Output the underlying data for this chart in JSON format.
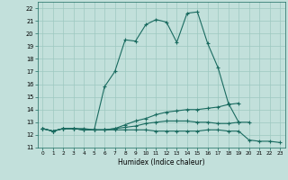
{
  "xlabel": "Humidex (Indice chaleur)",
  "xlim": [
    -0.5,
    23.5
  ],
  "ylim": [
    11,
    22.5
  ],
  "yticks": [
    11,
    12,
    13,
    14,
    15,
    16,
    17,
    18,
    19,
    20,
    21,
    22
  ],
  "xticks": [
    0,
    1,
    2,
    3,
    4,
    5,
    6,
    7,
    8,
    9,
    10,
    11,
    12,
    13,
    14,
    15,
    16,
    17,
    18,
    19,
    20,
    21,
    22,
    23
  ],
  "bg_color": "#c2e0db",
  "grid_color": "#9dc8c0",
  "line_color": "#1a6b60",
  "curves": [
    {
      "x": [
        0,
        1,
        2,
        3,
        4,
        5,
        6,
        7,
        8,
        9,
        10,
        11,
        12,
        13,
        14,
        15,
        16,
        17,
        18,
        19
      ],
      "y": [
        12.5,
        12.3,
        12.5,
        12.5,
        12.5,
        12.4,
        15.8,
        17.0,
        19.5,
        19.4,
        20.7,
        21.1,
        20.9,
        19.3,
        21.6,
        21.7,
        19.2,
        17.3,
        14.5,
        13.0
      ]
    },
    {
      "x": [
        0,
        1,
        2,
        3,
        4,
        5,
        6,
        7,
        8,
        9,
        10,
        11,
        12,
        13,
        14,
        15,
        16,
        17,
        18,
        19
      ],
      "y": [
        12.5,
        12.3,
        12.5,
        12.5,
        12.4,
        12.4,
        12.4,
        12.5,
        12.8,
        13.1,
        13.3,
        13.6,
        13.8,
        13.9,
        14.0,
        14.0,
        14.1,
        14.2,
        14.4,
        14.5
      ]
    },
    {
      "x": [
        0,
        1,
        2,
        3,
        4,
        5,
        6,
        7,
        8,
        9,
        10,
        11,
        12,
        13,
        14,
        15,
        16,
        17,
        18,
        19,
        20,
        21,
        22,
        23
      ],
      "y": [
        12.5,
        12.3,
        12.5,
        12.5,
        12.4,
        12.4,
        12.4,
        12.4,
        12.4,
        12.4,
        12.4,
        12.3,
        12.3,
        12.3,
        12.3,
        12.3,
        12.4,
        12.4,
        12.3,
        12.3,
        11.6,
        11.5,
        11.5,
        11.4
      ]
    },
    {
      "x": [
        0,
        1,
        2,
        3,
        4,
        5,
        6,
        7,
        8,
        9,
        10,
        11,
        12,
        13,
        14,
        15,
        16,
        17,
        18,
        19,
        20
      ],
      "y": [
        12.5,
        12.3,
        12.5,
        12.5,
        12.4,
        12.4,
        12.4,
        12.5,
        12.6,
        12.7,
        12.9,
        13.0,
        13.1,
        13.1,
        13.1,
        13.0,
        13.0,
        12.9,
        12.9,
        13.0,
        13.0
      ]
    }
  ]
}
